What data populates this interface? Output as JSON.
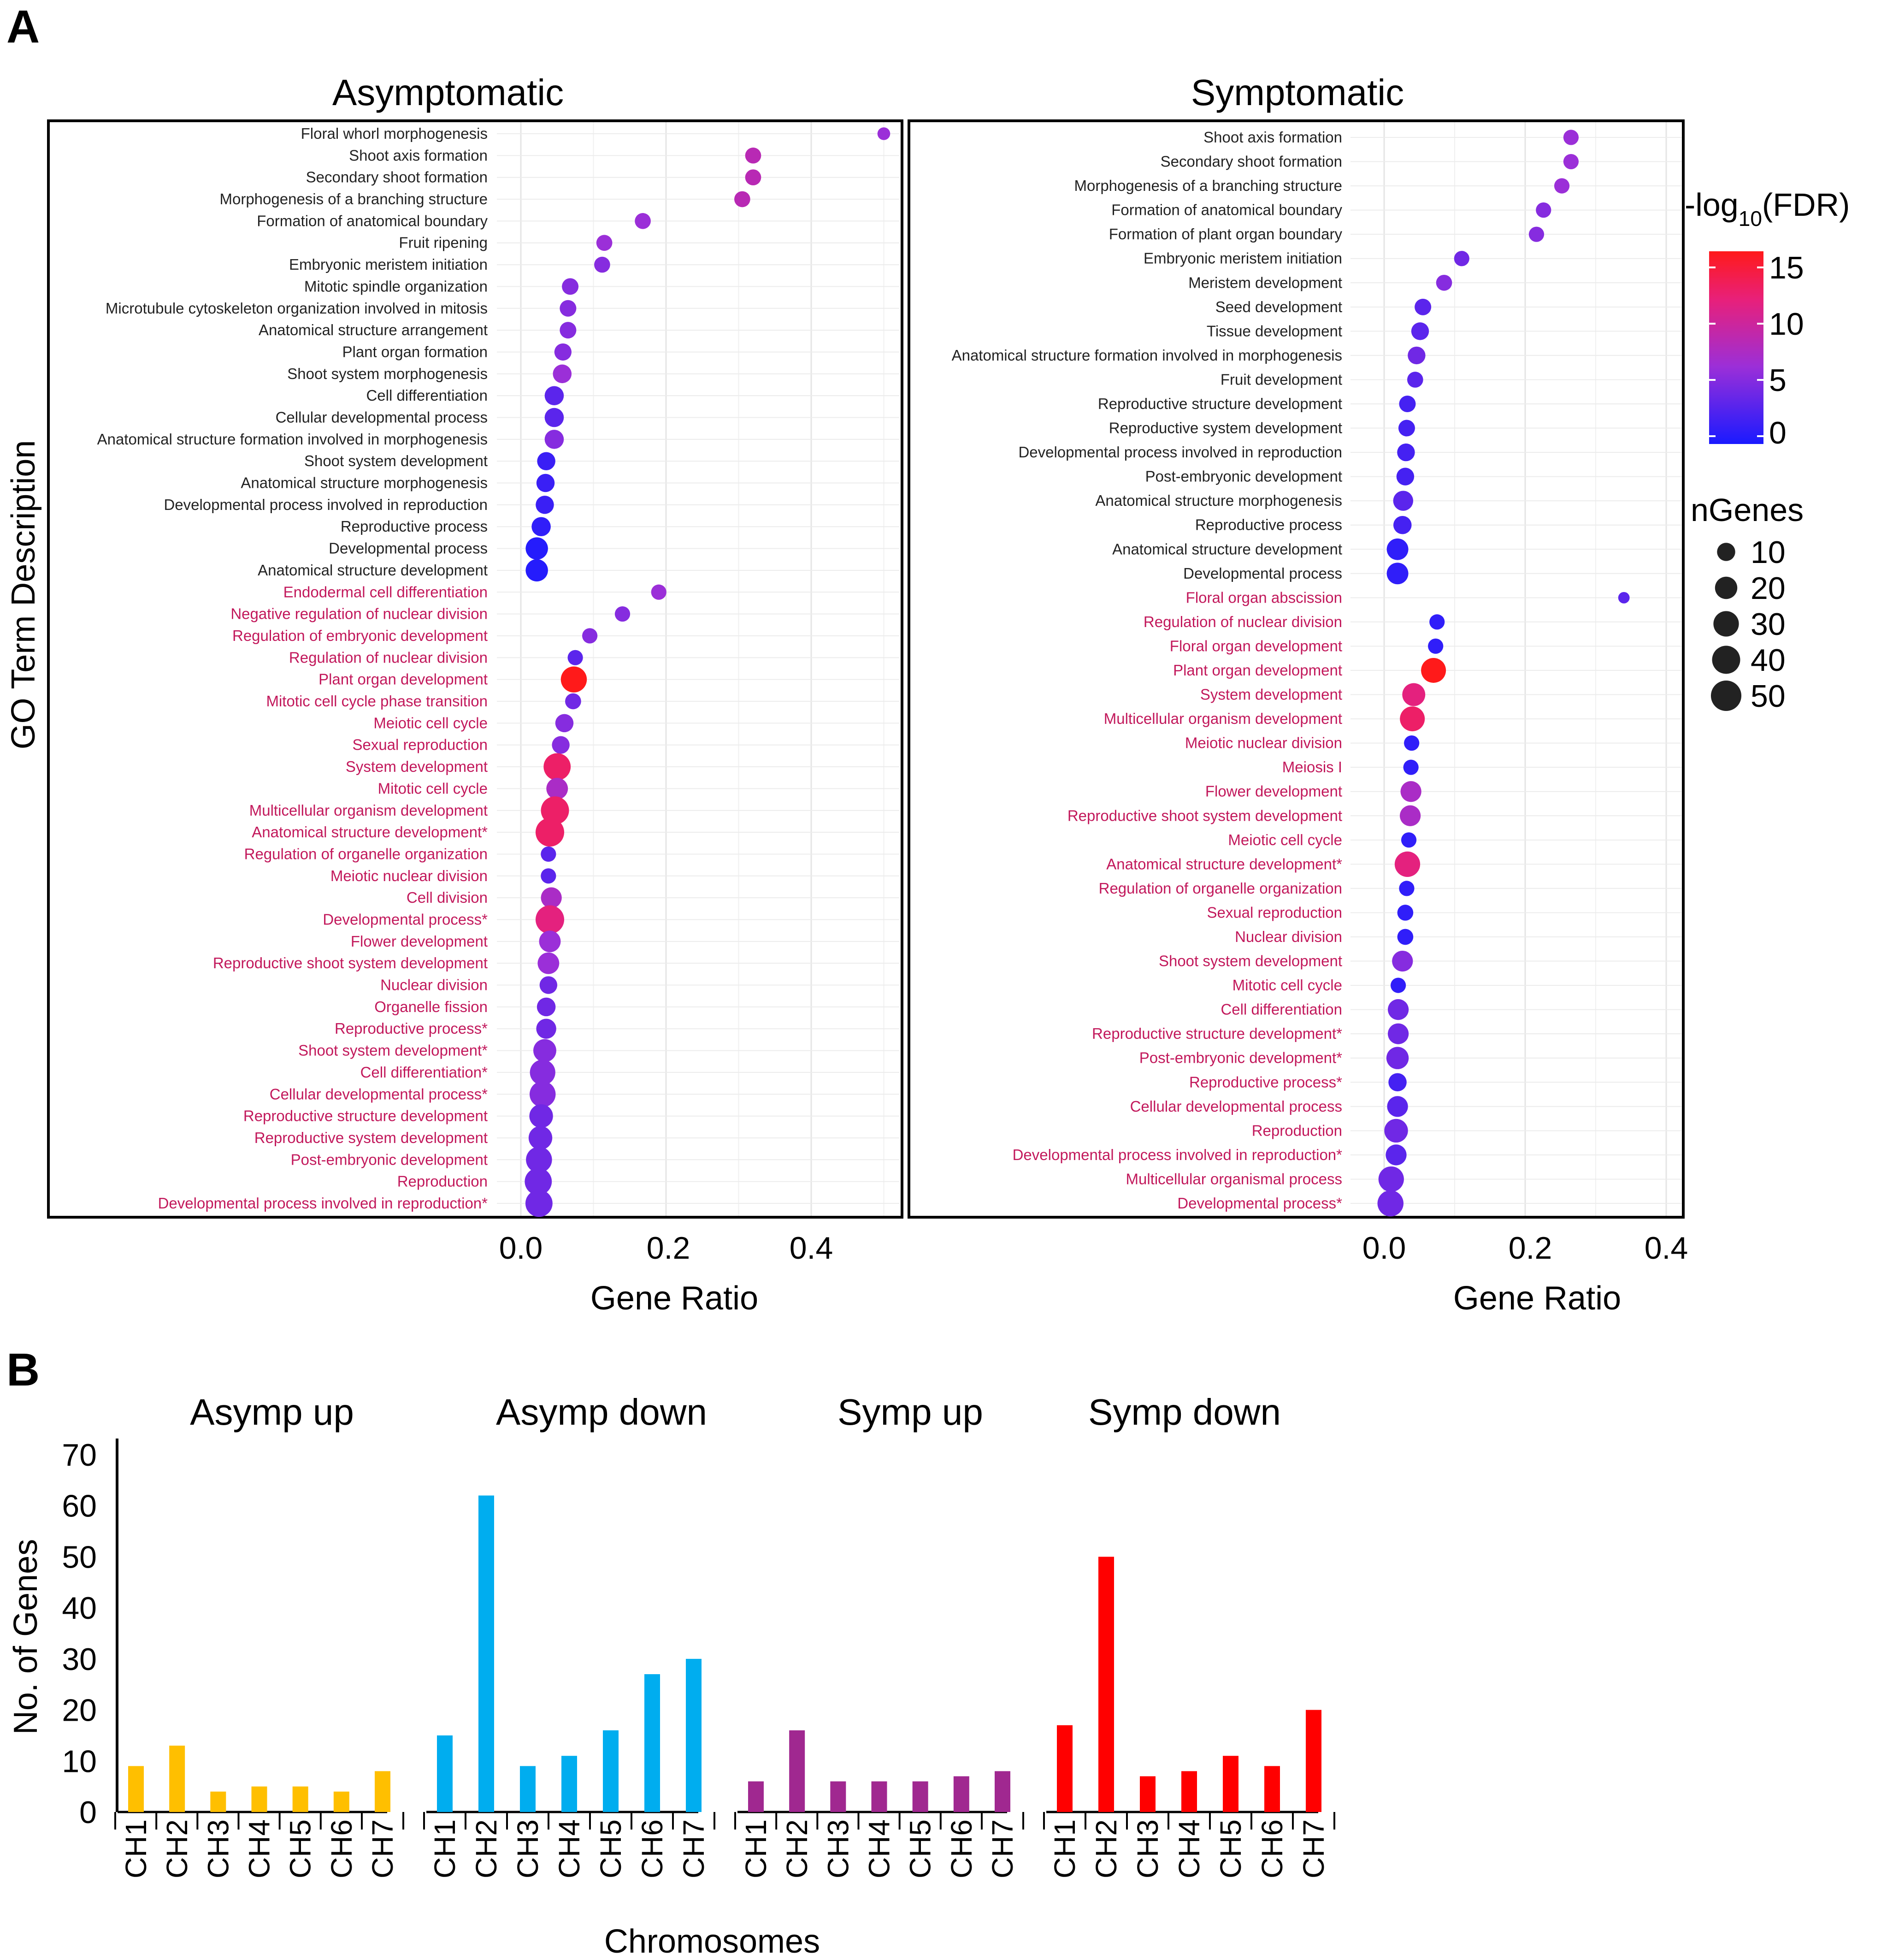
{
  "panels": {
    "a": "A",
    "b": "B"
  },
  "legend": {
    "fdr_title_main": "-log",
    "fdr_title_sub": "10",
    "fdr_title_tail": "(FDR)",
    "fdr_ticks": [
      "15",
      "10",
      "5",
      "0"
    ],
    "ngenes_title": "nGenes",
    "ngenes_ticks": [
      "10",
      "20",
      "30",
      "40",
      "50"
    ],
    "colors": {
      "low": "#1a1aff",
      "mid": "#9b2fd8",
      "high": "#ff1a1a"
    }
  },
  "text_colors": {
    "black": "#222222",
    "pink": "#c2185b"
  },
  "chart_data": [
    {
      "type": "scatter",
      "title": "Asymptomatic",
      "xlabel": "Gene Ratio",
      "ylabel": "GO Term Description",
      "xticks": [
        "0.0",
        "0.2",
        "0.4"
      ],
      "xlim": [
        -0.077,
        0.505
      ],
      "terms": [
        {
          "label": "Floral whorl morphogenesis",
          "x": 0.5,
          "fdr": 6,
          "n": 2,
          "group": "black"
        },
        {
          "label": "Shoot axis formation",
          "x": 0.32,
          "fdr": 8,
          "n": 6,
          "group": "black"
        },
        {
          "label": "Secondary shoot formation",
          "x": 0.32,
          "fdr": 8,
          "n": 6,
          "group": "black"
        },
        {
          "label": "Morphogenesis of a branching structure",
          "x": 0.305,
          "fdr": 8,
          "n": 6,
          "group": "black"
        },
        {
          "label": "Formation of anatomical boundary",
          "x": 0.168,
          "fdr": 6,
          "n": 6,
          "group": "black"
        },
        {
          "label": "Fruit ripening",
          "x": 0.115,
          "fdr": 6,
          "n": 6,
          "group": "black"
        },
        {
          "label": "Embryonic meristem initiation",
          "x": 0.112,
          "fdr": 5,
          "n": 6,
          "group": "black"
        },
        {
          "label": "Mitotic spindle organization",
          "x": 0.068,
          "fdr": 5,
          "n": 7,
          "group": "black"
        },
        {
          "label": "Microtubule cytoskeleton organization involved in mitosis",
          "x": 0.065,
          "fdr": 5,
          "n": 7,
          "group": "black"
        },
        {
          "label": "Anatomical structure arrangement",
          "x": 0.065,
          "fdr": 5,
          "n": 7,
          "group": "black"
        },
        {
          "label": "Plant organ formation",
          "x": 0.058,
          "fdr": 5,
          "n": 8,
          "group": "black"
        },
        {
          "label": "Shoot system morphogenesis",
          "x": 0.057,
          "fdr": 6,
          "n": 11,
          "group": "black"
        },
        {
          "label": "Cell differentiation",
          "x": 0.046,
          "fdr": 3,
          "n": 12,
          "group": "black"
        },
        {
          "label": "Cellular developmental process",
          "x": 0.046,
          "fdr": 3,
          "n": 12,
          "group": "black"
        },
        {
          "label": "Anatomical structure formation involved in morphogenesis",
          "x": 0.046,
          "fdr": 5,
          "n": 12,
          "group": "black"
        },
        {
          "label": "Shoot system development",
          "x": 0.035,
          "fdr": 1.5,
          "n": 10,
          "group": "black"
        },
        {
          "label": "Anatomical structure morphogenesis",
          "x": 0.034,
          "fdr": 1.5,
          "n": 10,
          "group": "black"
        },
        {
          "label": "Developmental process involved in reproduction",
          "x": 0.033,
          "fdr": 1.5,
          "n": 10,
          "group": "black"
        },
        {
          "label": "Reproductive process",
          "x": 0.028,
          "fdr": 1,
          "n": 12,
          "group": "black"
        },
        {
          "label": "Developmental process",
          "x": 0.022,
          "fdr": 0.5,
          "n": 20,
          "group": "black"
        },
        {
          "label": "Anatomical structure development",
          "x": 0.022,
          "fdr": 0.5,
          "n": 20,
          "group": "black"
        },
        {
          "label": "Endodermal cell differentiation",
          "x": 0.19,
          "fdr": 6,
          "n": 5,
          "group": "pink"
        },
        {
          "label": "Negative regulation of nuclear division",
          "x": 0.14,
          "fdr": 5,
          "n": 5,
          "group": "pink"
        },
        {
          "label": "Regulation of embryonic development",
          "x": 0.095,
          "fdr": 5,
          "n": 5,
          "group": "pink"
        },
        {
          "label": "Regulation of nuclear division",
          "x": 0.075,
          "fdr": 3,
          "n": 5,
          "group": "pink"
        },
        {
          "label": "Plant organ development",
          "x": 0.073,
          "fdr": 15,
          "n": 32,
          "group": "pink"
        },
        {
          "label": "Mitotic cell cycle phase transition",
          "x": 0.072,
          "fdr": 4,
          "n": 6,
          "group": "pink"
        },
        {
          "label": "Meiotic cell cycle",
          "x": 0.06,
          "fdr": 5,
          "n": 10,
          "group": "pink"
        },
        {
          "label": "Sexual reproduction",
          "x": 0.055,
          "fdr": 5,
          "n": 9,
          "group": "pink"
        },
        {
          "label": "System development",
          "x": 0.05,
          "fdr": 12,
          "n": 36,
          "group": "pink"
        },
        {
          "label": "Mitotic cell cycle",
          "x": 0.05,
          "fdr": 7,
          "n": 18,
          "group": "pink"
        },
        {
          "label": "Multicellular organism development",
          "x": 0.047,
          "fdr": 12,
          "n": 40,
          "group": "pink"
        },
        {
          "label": "Anatomical structure development*",
          "x": 0.04,
          "fdr": 12,
          "n": 42,
          "group": "pink"
        },
        {
          "label": "Regulation of organelle organization",
          "x": 0.038,
          "fdr": 3,
          "n": 5,
          "group": "pink"
        },
        {
          "label": "Meiotic nuclear division",
          "x": 0.038,
          "fdr": 3,
          "n": 5,
          "group": "pink"
        },
        {
          "label": "Cell division",
          "x": 0.042,
          "fdr": 7,
          "n": 16,
          "group": "pink"
        },
        {
          "label": "Developmental process*",
          "x": 0.04,
          "fdr": 11,
          "n": 42,
          "group": "pink"
        },
        {
          "label": "Flower development",
          "x": 0.04,
          "fdr": 6,
          "n": 18,
          "group": "pink"
        },
        {
          "label": "Reproductive shoot system development",
          "x": 0.038,
          "fdr": 6,
          "n": 18,
          "group": "pink"
        },
        {
          "label": "Nuclear division",
          "x": 0.038,
          "fdr": 4,
          "n": 9,
          "group": "pink"
        },
        {
          "label": "Organelle fission",
          "x": 0.035,
          "fdr": 4,
          "n": 11,
          "group": "pink"
        },
        {
          "label": "Reproductive process*",
          "x": 0.035,
          "fdr": 4,
          "n": 14,
          "group": "pink"
        },
        {
          "label": "Shoot system development*",
          "x": 0.033,
          "fdr": 5,
          "n": 22,
          "group": "pink"
        },
        {
          "label": "Cell differentiation*",
          "x": 0.03,
          "fdr": 5,
          "n": 30,
          "group": "pink"
        },
        {
          "label": "Cellular developmental process*",
          "x": 0.03,
          "fdr": 5,
          "n": 32,
          "group": "pink"
        },
        {
          "label": "Reproductive structure development",
          "x": 0.028,
          "fdr": 4,
          "n": 24,
          "group": "pink"
        },
        {
          "label": "Reproductive system development",
          "x": 0.027,
          "fdr": 4,
          "n": 24,
          "group": "pink"
        },
        {
          "label": "Post-embryonic development",
          "x": 0.025,
          "fdr": 4,
          "n": 32,
          "group": "pink"
        },
        {
          "label": "Reproduction",
          "x": 0.024,
          "fdr": 4,
          "n": 36,
          "group": "pink"
        },
        {
          "label": "Developmental process involved in reproduction*",
          "x": 0.025,
          "fdr": 4,
          "n": 36,
          "group": "pink"
        }
      ]
    },
    {
      "type": "scatter",
      "title": "Symptomatic",
      "xlabel": "Gene Ratio",
      "xticks": [
        "0.0",
        "0.2",
        "0.4"
      ],
      "xlim": [
        -0.039,
        0.415
      ],
      "terms": [
        {
          "label": "Shoot axis formation",
          "x": 0.265,
          "fdr": 6,
          "n": 5,
          "group": "black"
        },
        {
          "label": "Secondary shoot formation",
          "x": 0.265,
          "fdr": 6,
          "n": 5,
          "group": "black"
        },
        {
          "label": "Morphogenesis of a branching structure",
          "x": 0.252,
          "fdr": 6,
          "n": 5,
          "group": "black"
        },
        {
          "label": "Formation of anatomical boundary",
          "x": 0.226,
          "fdr": 5,
          "n": 5,
          "group": "black"
        },
        {
          "label": "Formation of plant organ boundary",
          "x": 0.216,
          "fdr": 5,
          "n": 5,
          "group": "black"
        },
        {
          "label": "Embryonic meristem initiation",
          "x": 0.11,
          "fdr": 4,
          "n": 5,
          "group": "black"
        },
        {
          "label": "Meristem development",
          "x": 0.085,
          "fdr": 5,
          "n": 6,
          "group": "black"
        },
        {
          "label": "Seed development",
          "x": 0.055,
          "fdr": 3,
          "n": 7,
          "group": "black"
        },
        {
          "label": "Tissue development",
          "x": 0.051,
          "fdr": 3,
          "n": 9,
          "group": "black"
        },
        {
          "label": "Anatomical structure formation involved in morphogenesis",
          "x": 0.046,
          "fdr": 4,
          "n": 9,
          "group": "black"
        },
        {
          "label": "Fruit development",
          "x": 0.044,
          "fdr": 3,
          "n": 6,
          "group": "black"
        },
        {
          "label": "Reproductive structure development",
          "x": 0.033,
          "fdr": 2,
          "n": 7,
          "group": "black"
        },
        {
          "label": "Reproductive system development",
          "x": 0.032,
          "fdr": 2,
          "n": 7,
          "group": "black"
        },
        {
          "label": "Developmental process involved in reproduction",
          "x": 0.031,
          "fdr": 2,
          "n": 9,
          "group": "black"
        },
        {
          "label": "Post-embryonic development",
          "x": 0.03,
          "fdr": 2,
          "n": 9,
          "group": "black"
        },
        {
          "label": "Anatomical structure morphogenesis",
          "x": 0.027,
          "fdr": 3,
          "n": 14,
          "group": "black"
        },
        {
          "label": "Reproductive process",
          "x": 0.026,
          "fdr": 2,
          "n": 10,
          "group": "black"
        },
        {
          "label": "Anatomical structure development",
          "x": 0.019,
          "fdr": 1,
          "n": 18,
          "group": "black"
        },
        {
          "label": "Developmental process",
          "x": 0.019,
          "fdr": 1,
          "n": 18,
          "group": "black"
        },
        {
          "label": "Floral organ abscission",
          "x": 0.34,
          "fdr": 3,
          "n": 1,
          "group": "pink"
        },
        {
          "label": "Regulation of nuclear division",
          "x": 0.075,
          "fdr": 1,
          "n": 5,
          "group": "pink"
        },
        {
          "label": "Floral organ development",
          "x": 0.073,
          "fdr": 1,
          "n": 5,
          "group": "pink"
        },
        {
          "label": "Plant organ development",
          "x": 0.07,
          "fdr": 15,
          "n": 28,
          "group": "pink"
        },
        {
          "label": "System development",
          "x": 0.042,
          "fdr": 11,
          "n": 22,
          "group": "pink"
        },
        {
          "label": "Multicellular organism development",
          "x": 0.04,
          "fdr": 12,
          "n": 28,
          "group": "pink"
        },
        {
          "label": "Meiotic nuclear division",
          "x": 0.039,
          "fdr": 1,
          "n": 5,
          "group": "pink"
        },
        {
          "label": "Meiosis I",
          "x": 0.038,
          "fdr": 1,
          "n": 5,
          "group": "pink"
        },
        {
          "label": "Flower development",
          "x": 0.038,
          "fdr": 7,
          "n": 16,
          "group": "pink"
        },
        {
          "label": "Reproductive shoot system development",
          "x": 0.037,
          "fdr": 7,
          "n": 16,
          "group": "pink"
        },
        {
          "label": "Meiotic cell cycle",
          "x": 0.035,
          "fdr": 1,
          "n": 5,
          "group": "pink"
        },
        {
          "label": "Anatomical structure development*",
          "x": 0.033,
          "fdr": 11,
          "n": 30,
          "group": "pink"
        },
        {
          "label": "Regulation of organelle organization",
          "x": 0.032,
          "fdr": 1,
          "n": 5,
          "group": "pink"
        },
        {
          "label": "Sexual reproduction",
          "x": 0.03,
          "fdr": 1,
          "n": 6,
          "group": "pink"
        },
        {
          "label": "Nuclear division",
          "x": 0.03,
          "fdr": 1,
          "n": 6,
          "group": "pink"
        },
        {
          "label": "Shoot system development",
          "x": 0.026,
          "fdr": 5,
          "n": 16,
          "group": "pink"
        },
        {
          "label": "Mitotic cell cycle",
          "x": 0.02,
          "fdr": 1,
          "n": 5,
          "group": "pink"
        },
        {
          "label": "Cell differentiation",
          "x": 0.02,
          "fdr": 4,
          "n": 16,
          "group": "pink"
        },
        {
          "label": "Reproductive structure development*",
          "x": 0.02,
          "fdr": 4,
          "n": 16,
          "group": "pink"
        },
        {
          "label": "Post-embryonic development*",
          "x": 0.019,
          "fdr": 4,
          "n": 20,
          "group": "pink"
        },
        {
          "label": "Reproductive process*",
          "x": 0.019,
          "fdr": 2,
          "n": 10,
          "group": "pink"
        },
        {
          "label": "Cellular developmental process",
          "x": 0.019,
          "fdr": 3,
          "n": 16,
          "group": "pink"
        },
        {
          "label": "Reproduction",
          "x": 0.017,
          "fdr": 4,
          "n": 24,
          "group": "pink"
        },
        {
          "label": "Developmental process involved in reproduction*",
          "x": 0.017,
          "fdr": 3,
          "n": 16,
          "group": "pink"
        },
        {
          "label": "Multicellular organismal process",
          "x": 0.01,
          "fdr": 4,
          "n": 30,
          "group": "pink"
        },
        {
          "label": "Developmental process*",
          "x": 0.009,
          "fdr": 4,
          "n": 32,
          "group": "pink"
        }
      ]
    },
    {
      "type": "bar",
      "ylabel": "No. of Genes",
      "xlabel": "Chromosomes",
      "ylim": [
        0,
        70
      ],
      "yticks": [
        "0",
        "10",
        "20",
        "30",
        "40",
        "50",
        "60",
        "70"
      ],
      "categories": [
        "CH1",
        "CH2",
        "CH3",
        "CH4",
        "CH5",
        "CH6",
        "CH7"
      ],
      "series": [
        {
          "name": "Asymp up",
          "color": "#ffbf00",
          "values": [
            9,
            13,
            4,
            5,
            5,
            4,
            8
          ]
        },
        {
          "name": "Asymp down",
          "color": "#00adef",
          "values": [
            15,
            62,
            9,
            11,
            16,
            27,
            30
          ]
        },
        {
          "name": "Symp up",
          "color": "#a02890",
          "values": [
            6,
            16,
            6,
            6,
            6,
            7,
            8
          ]
        },
        {
          "name": "Symp down",
          "color": "#ff0000",
          "values": [
            17,
            50,
            7,
            8,
            11,
            9,
            20
          ]
        }
      ]
    }
  ]
}
